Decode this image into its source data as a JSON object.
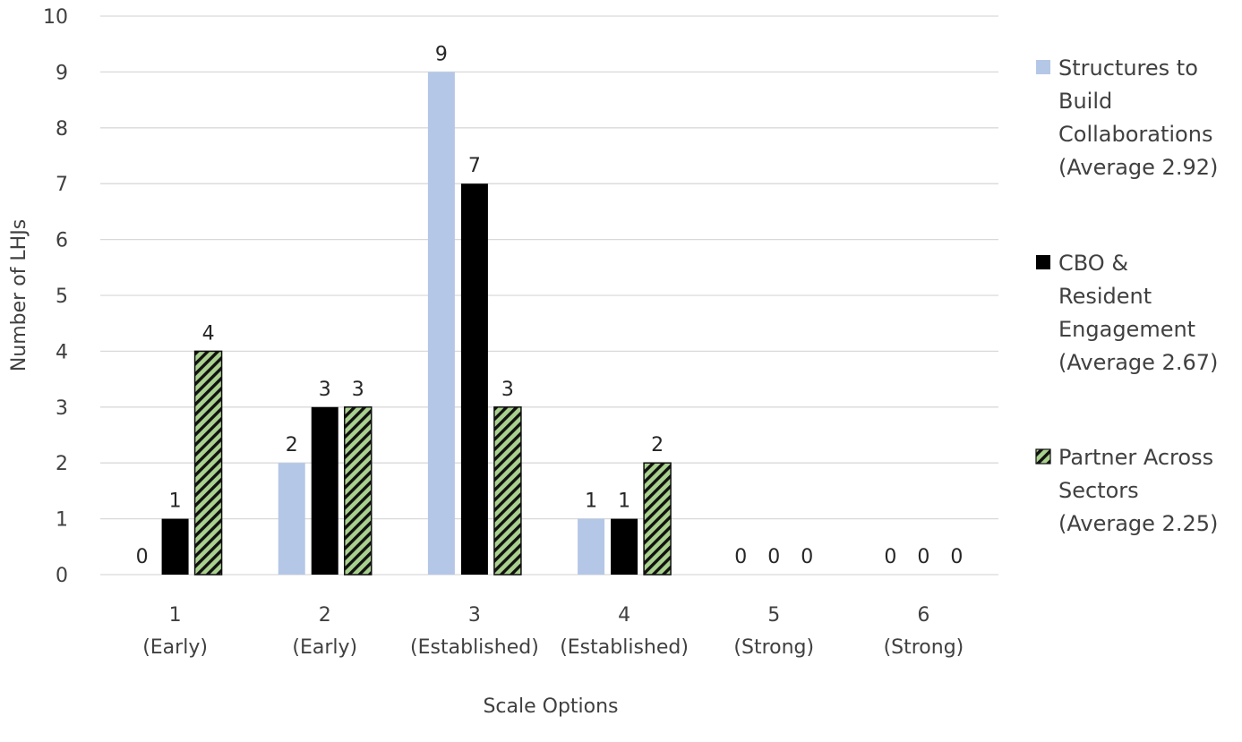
{
  "chart_data": {
    "type": "bar",
    "xlabel": "Scale Options",
    "ylabel": "Number of LHJs",
    "ylim": [
      0,
      10
    ],
    "yticks": [
      0,
      1,
      2,
      3,
      4,
      5,
      6,
      7,
      8,
      9,
      10
    ],
    "grid": true,
    "legend_position": "right",
    "categories": [
      [
        "1",
        "(Early)"
      ],
      [
        "2",
        "(Early)"
      ],
      [
        "3",
        "(Established)"
      ],
      [
        "4",
        "(Established)"
      ],
      [
        "5",
        "(Strong)"
      ],
      [
        "6",
        "(Strong)"
      ]
    ],
    "series": [
      {
        "name": [
          "Structures to",
          "Build",
          "Collaborations",
          "(Average 2.92)"
        ],
        "values": [
          0,
          2,
          9,
          1,
          0,
          0
        ],
        "color": "#b4c7e7",
        "pattern": "solid"
      },
      {
        "name": [
          "CBO &",
          "Resident",
          "Engagement",
          "(Average 2.67)"
        ],
        "values": [
          1,
          3,
          7,
          1,
          0,
          0
        ],
        "color": "#000000",
        "pattern": "solid"
      },
      {
        "name": [
          "Partner Across",
          "Sectors",
          "(Average 2.25)"
        ],
        "values": [
          4,
          3,
          3,
          2,
          0,
          0
        ],
        "color": "#a9d18e",
        "pattern": "diagonal-hatch"
      }
    ]
  }
}
